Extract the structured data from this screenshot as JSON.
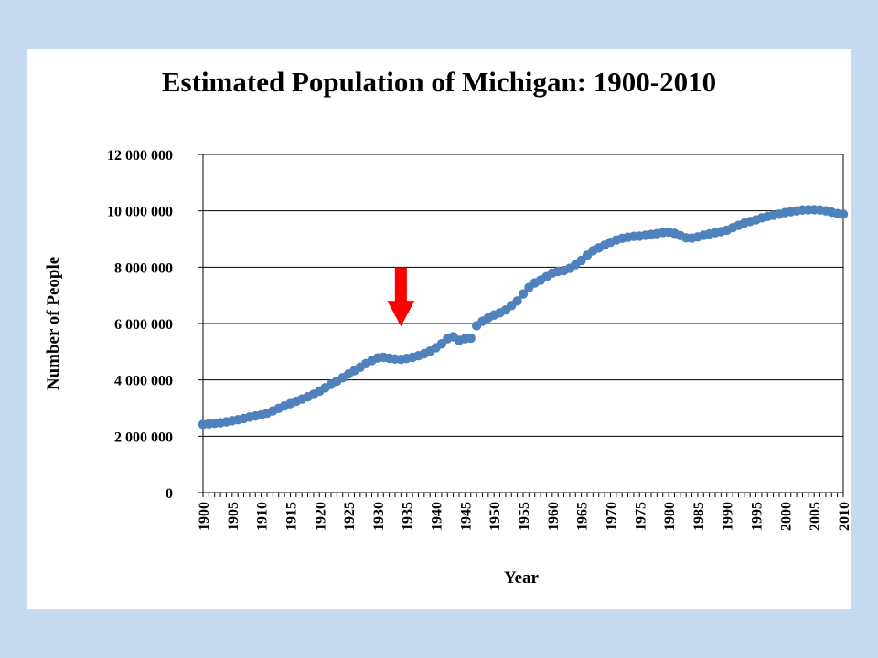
{
  "chart_data": {
    "type": "scatter",
    "title": "Estimated Population of Michigan: 1900-2010",
    "xlabel": "Year",
    "ylabel": "Number of People",
    "ylim": [
      0,
      12000000
    ],
    "xlim": [
      1900,
      2010
    ],
    "yticks": [
      "0",
      "2 000 000",
      "4 000 000",
      "6 000 000",
      "8 000 000",
      "10 000 000",
      "12 000 000"
    ],
    "xticks": [
      "1900",
      "1905",
      "1910",
      "1915",
      "1920",
      "1925",
      "1930",
      "1935",
      "1940",
      "1945",
      "1950",
      "1955",
      "1960",
      "1965",
      "1970",
      "1975",
      "1980",
      "1985",
      "1990",
      "1995",
      "2000",
      "2005",
      "2010"
    ],
    "grid": true,
    "legend": "none",
    "marker_color": "#4f81bd",
    "series": [
      {
        "x": [
          1900,
          1901,
          1902,
          1903,
          1904,
          1905,
          1906,
          1907,
          1908,
          1909,
          1910,
          1911,
          1912,
          1913,
          1914,
          1915,
          1916,
          1917,
          1918,
          1919,
          1920,
          1921,
          1922,
          1923,
          1924,
          1925,
          1926,
          1927,
          1928,
          1929,
          1930,
          1931,
          1932,
          1933,
          1934,
          1935,
          1936,
          1937,
          1938,
          1939,
          1940,
          1941,
          1942,
          1943,
          1944,
          1945,
          1946,
          1947,
          1948,
          1949,
          1950,
          1951,
          1952,
          1953,
          1954,
          1955,
          1956,
          1957,
          1958,
          1959,
          1960,
          1961,
          1962,
          1963,
          1964,
          1965,
          1966,
          1967,
          1968,
          1969,
          1970,
          1971,
          1972,
          1973,
          1974,
          1975,
          1976,
          1977,
          1978,
          1979,
          1980,
          1981,
          1982,
          1983,
          1984,
          1985,
          1986,
          1987,
          1988,
          1989,
          1990,
          1991,
          1992,
          1993,
          1994,
          1995,
          1996,
          1997,
          1998,
          1999,
          2000,
          2001,
          2002,
          2003,
          2004,
          2005,
          2006,
          2007,
          2008,
          2009,
          2010
        ],
        "y": [
          2420000,
          2440000,
          2460000,
          2480000,
          2510000,
          2550000,
          2590000,
          2630000,
          2680000,
          2720000,
          2760000,
          2820000,
          2900000,
          2990000,
          3080000,
          3160000,
          3240000,
          3320000,
          3400000,
          3490000,
          3600000,
          3720000,
          3840000,
          3960000,
          4080000,
          4210000,
          4330000,
          4450000,
          4580000,
          4690000,
          4780000,
          4800000,
          4770000,
          4740000,
          4730000,
          4760000,
          4800000,
          4860000,
          4930000,
          5020000,
          5140000,
          5280000,
          5460000,
          5530000,
          5400000,
          5460000,
          5480000,
          5920000,
          6080000,
          6200000,
          6300000,
          6380000,
          6480000,
          6640000,
          6800000,
          7050000,
          7280000,
          7440000,
          7540000,
          7660000,
          7790000,
          7850000,
          7880000,
          7960000,
          8090000,
          8240000,
          8420000,
          8580000,
          8680000,
          8780000,
          8880000,
          8960000,
          9020000,
          9060000,
          9090000,
          9100000,
          9130000,
          9160000,
          9190000,
          9230000,
          9240000,
          9200000,
          9120000,
          9040000,
          9030000,
          9070000,
          9130000,
          9180000,
          9220000,
          9260000,
          9310000,
          9400000,
          9480000,
          9560000,
          9620000,
          9680000,
          9750000,
          9800000,
          9840000,
          9880000,
          9940000,
          9970000,
          10000000,
          10030000,
          10040000,
          10040000,
          10030000,
          10000000,
          9950000,
          9900000,
          9880000
        ]
      }
    ],
    "annotations": [
      {
        "type": "arrow",
        "x": 1934,
        "y_from": 8000000,
        "y_to": 5900000,
        "color": "#ff0000"
      }
    ]
  }
}
